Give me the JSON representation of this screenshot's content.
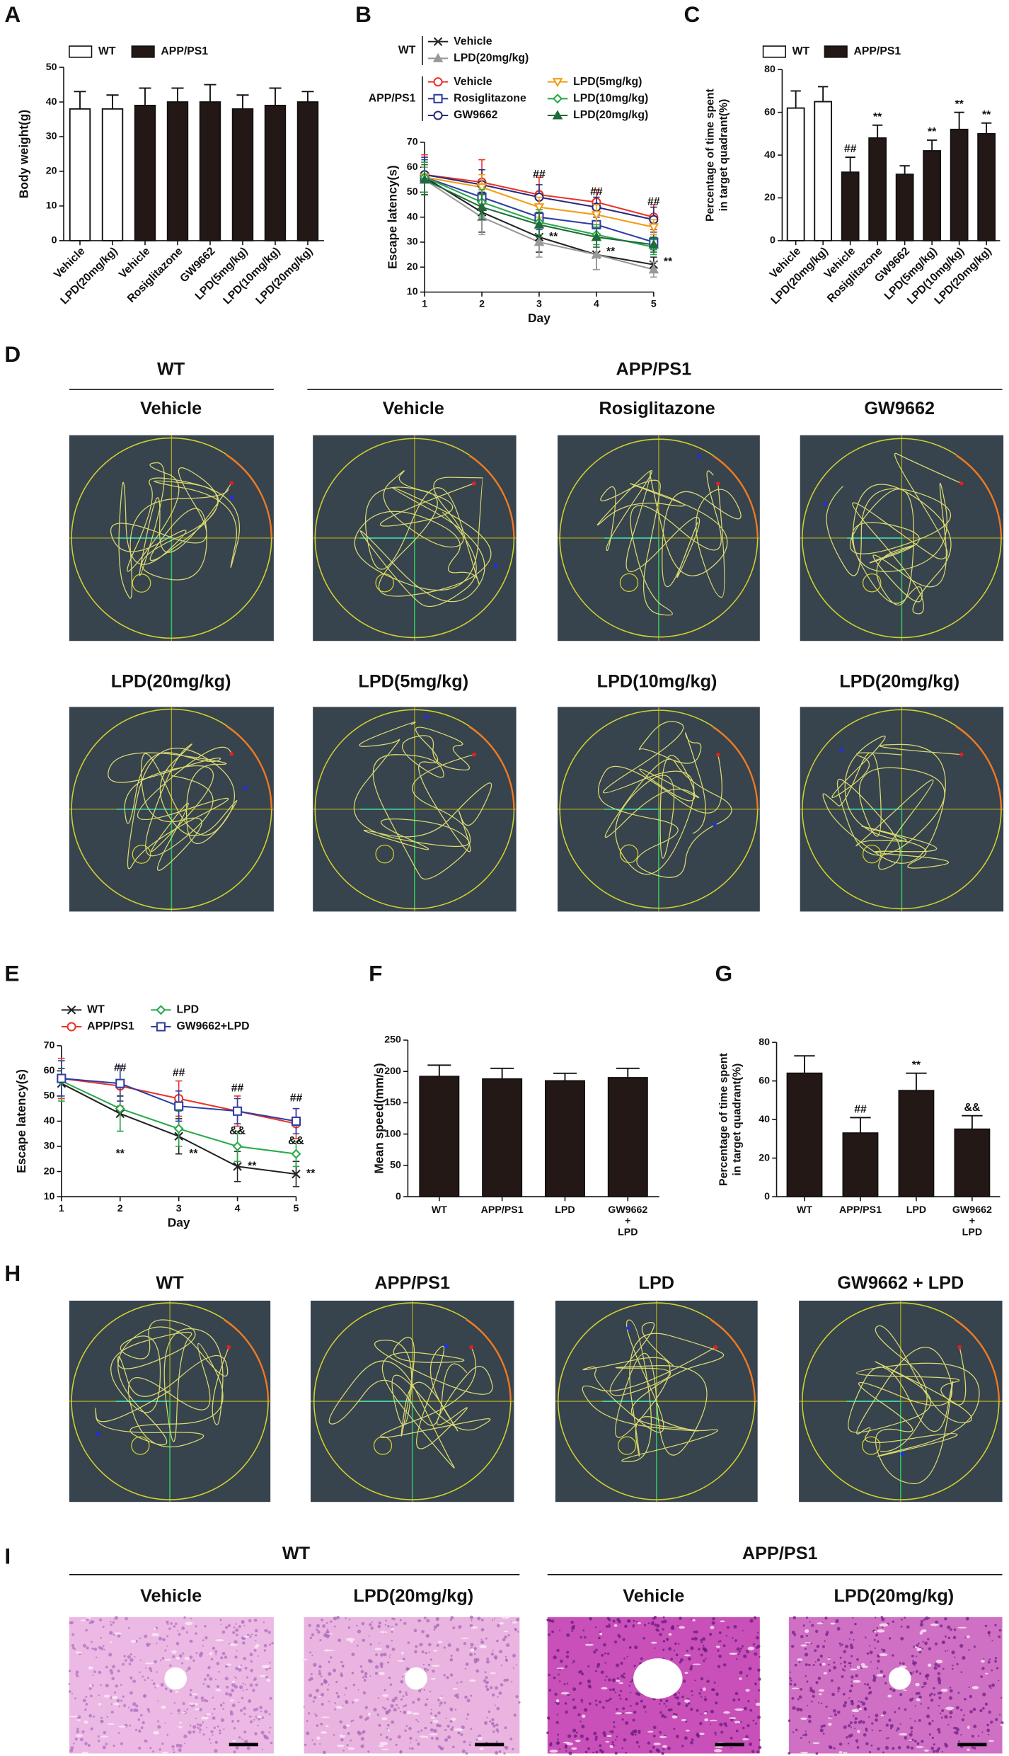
{
  "chart_data": [
    {
      "type": "bar",
      "panel": "A",
      "ylabel": "Body weight(g)",
      "categories": [
        "Vehicle",
        "LPD(20mg/kg)",
        "Vehicle",
        "Rosiglitazone",
        "GW9662",
        "LPD(5mg/kg)",
        "LPD(10mg/kg)",
        "LPD(20mg/kg)"
      ],
      "series": [
        {
          "name": "WT",
          "color": "#ffffff",
          "values": [
            38,
            38,
            null,
            null,
            null,
            null,
            null,
            null
          ],
          "errors": [
            5,
            4,
            null,
            null,
            null,
            null,
            null,
            null
          ]
        },
        {
          "name": "APP/PS1",
          "color": "#231815",
          "values": [
            null,
            null,
            39,
            40,
            40,
            38,
            39,
            40
          ],
          "errors": [
            null,
            null,
            5,
            4,
            5,
            4,
            5,
            3
          ]
        }
      ],
      "ylim": [
        0,
        50
      ],
      "yticks": [
        0,
        10,
        20,
        30,
        40,
        50
      ]
    },
    {
      "type": "line",
      "panel": "B",
      "xlabel": "Day",
      "ylabel": "Escape latency(s)",
      "legend_groups": [
        "WT",
        "APP/PS1"
      ],
      "x": [
        1,
        2,
        3,
        4,
        5
      ],
      "xlim": [
        1,
        5
      ],
      "xticks": [
        1,
        2,
        3,
        4,
        5
      ],
      "ylim": [
        10,
        70
      ],
      "yticks": [
        10,
        20,
        30,
        40,
        50,
        60,
        70
      ],
      "series": [
        {
          "name": "Vehicle",
          "color": "#222222",
          "marker": "x",
          "values": [
            56,
            42,
            32,
            25,
            21
          ],
          "errors": [
            6,
            8,
            6,
            6,
            3
          ]
        },
        {
          "name": "LPD(20mg/kg)",
          "color": "#999999",
          "marker": "triangle",
          "values": [
            55,
            40,
            30,
            25,
            19
          ],
          "errors": [
            5,
            7,
            6,
            6,
            3
          ]
        },
        {
          "name": "Vehicle",
          "color": "#e8332a",
          "marker": "circle",
          "values": [
            57,
            54,
            49,
            46,
            40
          ],
          "errors": [
            8,
            9,
            7,
            5,
            5
          ]
        },
        {
          "name": "Rosiglitazone",
          "color": "#2f3ea0",
          "marker": "square",
          "values": [
            56,
            48,
            40,
            37,
            30
          ],
          "errors": [
            7,
            5,
            5,
            4,
            3
          ]
        },
        {
          "name": "GW9662",
          "color": "#2a2a7a",
          "marker": "circle",
          "values": [
            57,
            53,
            48,
            44,
            39
          ],
          "errors": [
            7,
            6,
            5,
            4,
            5
          ]
        },
        {
          "name": "LPD(5mg/kg)",
          "color": "#f39c12",
          "marker": "triangle-down",
          "values": [
            56,
            52,
            44,
            41,
            36
          ],
          "errors": [
            6,
            5,
            4,
            4,
            3
          ]
        },
        {
          "name": "LPD(10mg/kg)",
          "color": "#2aa84a",
          "marker": "diamond",
          "values": [
            56,
            46,
            38,
            33,
            28
          ],
          "errors": [
            6,
            5,
            5,
            4,
            3
          ]
        },
        {
          "name": "LPD(20mg/kg)",
          "color": "#1f6b3a",
          "marker": "triangle",
          "values": [
            55,
            44,
            37,
            32,
            29
          ],
          "errors": [
            6,
            5,
            5,
            4,
            3
          ]
        }
      ],
      "annotations": [
        {
          "text": "##",
          "x": 3,
          "y": 57
        },
        {
          "text": "##",
          "x": 4,
          "y": 50
        },
        {
          "text": "##",
          "x": 5,
          "y": 46
        },
        {
          "text": "**",
          "x": 3.25,
          "y": 32
        },
        {
          "text": "**",
          "x": 4.25,
          "y": 26
        },
        {
          "text": "**",
          "x": 5.25,
          "y": 22
        }
      ]
    },
    {
      "type": "bar",
      "panel": "C",
      "ylabel": [
        "Percentage of time spent",
        "in target quadrant(%)"
      ],
      "categories": [
        "Vehicle",
        "LPD(20mg/kg)",
        "Vehicle",
        "Rosiglitazone",
        "GW9662",
        "LPD(5mg/kg)",
        "LPD(10mg/kg)",
        "LPD(20mg/kg)"
      ],
      "series": [
        {
          "name": "WT",
          "color": "#ffffff",
          "values": [
            62,
            65,
            null,
            null,
            null,
            null,
            null,
            null
          ],
          "errors": [
            8,
            7,
            null,
            null,
            null,
            null,
            null,
            null
          ]
        },
        {
          "name": "APP/PS1",
          "color": "#231815",
          "values": [
            null,
            null,
            32,
            48,
            31,
            42,
            52,
            50
          ],
          "errors": [
            null,
            null,
            7,
            6,
            4,
            5,
            8,
            5
          ]
        }
      ],
      "annotations": [
        null,
        null,
        "##",
        "**",
        null,
        "**",
        "**",
        "**"
      ],
      "ylim": [
        0,
        80
      ],
      "yticks": [
        0,
        20,
        40,
        60,
        80
      ]
    },
    {
      "type": "line",
      "panel": "E",
      "xlabel": "Day",
      "ylabel": "Escape latency(s)",
      "x": [
        1,
        2,
        3,
        4,
        5
      ],
      "xlim": [
        1,
        5
      ],
      "xticks": [
        1,
        2,
        3,
        4,
        5
      ],
      "ylim": [
        10,
        70
      ],
      "yticks": [
        10,
        20,
        30,
        40,
        50,
        60,
        70
      ],
      "series": [
        {
          "name": "WT",
          "color": "#222222",
          "marker": "x",
          "values": [
            55,
            43,
            34,
            22,
            19
          ],
          "errors": [
            6,
            7,
            7,
            6,
            5
          ]
        },
        {
          "name": "APP/PS1",
          "color": "#e8332a",
          "marker": "circle",
          "values": [
            57,
            54,
            49,
            44,
            39
          ],
          "errors": [
            8,
            8,
            7,
            6,
            6
          ]
        },
        {
          "name": "LPD",
          "color": "#2aa84a",
          "marker": "diamond",
          "values": [
            56,
            45,
            37,
            30,
            27
          ],
          "errors": [
            8,
            9,
            7,
            6,
            5
          ]
        },
        {
          "name": "GW9662+LPD",
          "color": "#2f3ea0",
          "marker": "square",
          "values": [
            57,
            55,
            46,
            44,
            40
          ],
          "errors": [
            7,
            7,
            6,
            5,
            5
          ]
        }
      ],
      "annotations": [
        {
          "text": "##",
          "x": 2,
          "y": 61
        },
        {
          "text": "##",
          "x": 3,
          "y": 59
        },
        {
          "text": "##",
          "x": 4,
          "y": 53
        },
        {
          "text": "##",
          "x": 5,
          "y": 49
        },
        {
          "text": "**",
          "x": 2,
          "y": 27
        },
        {
          "text": "**",
          "x": 3.25,
          "y": 27
        },
        {
          "text": "**",
          "x": 4.25,
          "y": 22
        },
        {
          "text": "**",
          "x": 5.25,
          "y": 19
        },
        {
          "text": "&&",
          "x": 4,
          "y": 36
        },
        {
          "text": "&&",
          "x": 5,
          "y": 32
        }
      ]
    },
    {
      "type": "bar",
      "panel": "F",
      "ylabel": "Mean speed(mm/s)",
      "categories": [
        "WT",
        "APP/PS1",
        "LPD",
        [
          "GW9662",
          "+",
          "LPD"
        ]
      ],
      "series": [
        {
          "color": "#231815",
          "values": [
            192,
            188,
            185,
            190
          ],
          "errors": [
            18,
            17,
            12,
            15
          ]
        }
      ],
      "ylim": [
        0,
        250
      ],
      "yticks": [
        0,
        50,
        100,
        150,
        200,
        250
      ]
    },
    {
      "type": "bar",
      "panel": "G",
      "ylabel": [
        "Percentage of time spent",
        "in target quadrant(%)"
      ],
      "categories": [
        "WT",
        "APP/PS1",
        "LPD",
        [
          "GW9662",
          "+",
          "LPD"
        ]
      ],
      "series": [
        {
          "color": "#231815",
          "values": [
            64,
            33,
            55,
            35
          ],
          "errors": [
            9,
            8,
            9,
            7
          ]
        }
      ],
      "annotations": [
        null,
        "##",
        "**",
        "&&"
      ],
      "ylim": [
        0,
        80
      ],
      "yticks": [
        0,
        20,
        40,
        60,
        80
      ]
    }
  ],
  "maze_d": {
    "panel": "D",
    "groups": [
      "WT",
      "APP/PS1"
    ],
    "titles": [
      "Vehicle",
      "Vehicle",
      "Rosiglitazone",
      "GW9662",
      "LPD(20mg/kg)",
      "LPD(5mg/kg)",
      "LPD(10mg/kg)",
      "LPD(20mg/kg)"
    ]
  },
  "maze_h": {
    "panel": "H",
    "titles": [
      "WT",
      "APP/PS1",
      "LPD",
      "GW9662 + LPD"
    ]
  },
  "histology_i": {
    "panel": "I",
    "groups": [
      "WT",
      "APP/PS1"
    ],
    "titles": [
      "Vehicle",
      "LPD(20mg/kg)",
      "Vehicle",
      "LPD(20mg/kg)"
    ]
  }
}
